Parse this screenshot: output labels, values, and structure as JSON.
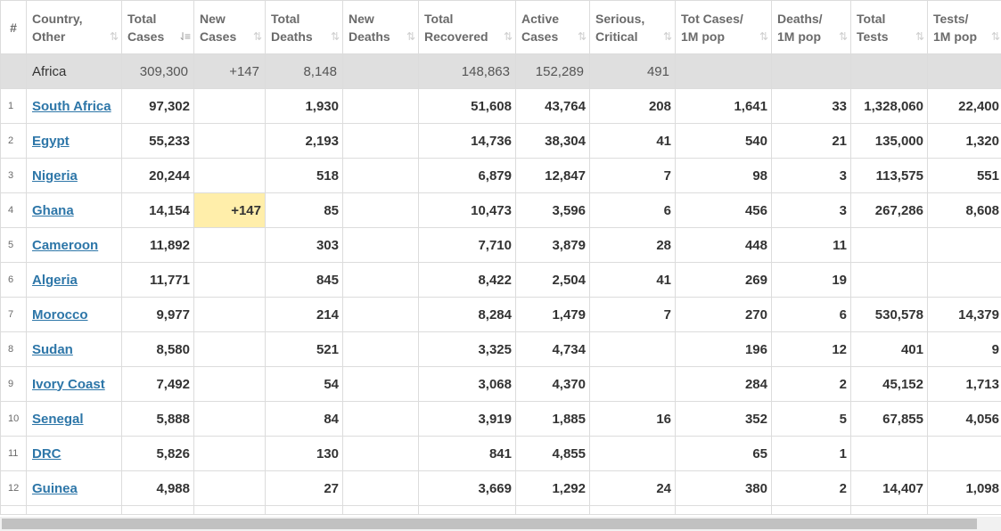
{
  "header": {
    "rank": "#",
    "columns": [
      {
        "l1": "Country,",
        "l2": "Other"
      },
      {
        "l1": "Total",
        "l2": "Cases"
      },
      {
        "l1": "New",
        "l2": "Cases"
      },
      {
        "l1": "Total",
        "l2": "Deaths"
      },
      {
        "l1": "New",
        "l2": "Deaths"
      },
      {
        "l1": "Total",
        "l2": "Recovered"
      },
      {
        "l1": "Active",
        "l2": "Cases"
      },
      {
        "l1": "Serious,",
        "l2": "Critical"
      },
      {
        "l1": "Tot Cases/",
        "l2": "1M pop"
      },
      {
        "l1": "Deaths/",
        "l2": "1M pop"
      },
      {
        "l1": "Total",
        "l2": "Tests"
      },
      {
        "l1": "Tests/",
        "l2": "1M pop"
      }
    ],
    "sort_icon": "⇅",
    "active_sort_icon": "⇃≡"
  },
  "continent": {
    "name": "Africa",
    "total_cases": "309,300",
    "new_cases": "+147",
    "total_deaths": "8,148",
    "new_deaths": "",
    "total_recovered": "148,863",
    "active_cases": "152,289",
    "serious": "491",
    "cases_per_m": "",
    "deaths_per_m": "",
    "total_tests": "",
    "tests_per_m": ""
  },
  "rows": [
    {
      "rank": "1",
      "country": "South Africa",
      "total_cases": "97,302",
      "new_cases": "",
      "total_deaths": "1,930",
      "new_deaths": "",
      "total_recovered": "51,608",
      "active_cases": "43,764",
      "serious": "208",
      "cases_per_m": "1,641",
      "deaths_per_m": "33",
      "total_tests": "1,328,060",
      "tests_per_m": "22,400"
    },
    {
      "rank": "2",
      "country": "Egypt",
      "total_cases": "55,233",
      "new_cases": "",
      "total_deaths": "2,193",
      "new_deaths": "",
      "total_recovered": "14,736",
      "active_cases": "38,304",
      "serious": "41",
      "cases_per_m": "540",
      "deaths_per_m": "21",
      "total_tests": "135,000",
      "tests_per_m": "1,320"
    },
    {
      "rank": "3",
      "country": "Nigeria",
      "total_cases": "20,244",
      "new_cases": "",
      "total_deaths": "518",
      "new_deaths": "",
      "total_recovered": "6,879",
      "active_cases": "12,847",
      "serious": "7",
      "cases_per_m": "98",
      "deaths_per_m": "3",
      "total_tests": "113,575",
      "tests_per_m": "551"
    },
    {
      "rank": "4",
      "country": "Ghana",
      "total_cases": "14,154",
      "new_cases": "+147",
      "total_deaths": "85",
      "new_deaths": "",
      "total_recovered": "10,473",
      "active_cases": "3,596",
      "serious": "6",
      "cases_per_m": "456",
      "deaths_per_m": "3",
      "total_tests": "267,286",
      "tests_per_m": "8,608"
    },
    {
      "rank": "5",
      "country": "Cameroon",
      "total_cases": "11,892",
      "new_cases": "",
      "total_deaths": "303",
      "new_deaths": "",
      "total_recovered": "7,710",
      "active_cases": "3,879",
      "serious": "28",
      "cases_per_m": "448",
      "deaths_per_m": "11",
      "total_tests": "",
      "tests_per_m": ""
    },
    {
      "rank": "6",
      "country": "Algeria",
      "total_cases": "11,771",
      "new_cases": "",
      "total_deaths": "845",
      "new_deaths": "",
      "total_recovered": "8,422",
      "active_cases": "2,504",
      "serious": "41",
      "cases_per_m": "269",
      "deaths_per_m": "19",
      "total_tests": "",
      "tests_per_m": ""
    },
    {
      "rank": "7",
      "country": "Morocco",
      "total_cases": "9,977",
      "new_cases": "",
      "total_deaths": "214",
      "new_deaths": "",
      "total_recovered": "8,284",
      "active_cases": "1,479",
      "serious": "7",
      "cases_per_m": "270",
      "deaths_per_m": "6",
      "total_tests": "530,578",
      "tests_per_m": "14,379"
    },
    {
      "rank": "8",
      "country": "Sudan",
      "total_cases": "8,580",
      "new_cases": "",
      "total_deaths": "521",
      "new_deaths": "",
      "total_recovered": "3,325",
      "active_cases": "4,734",
      "serious": "",
      "cases_per_m": "196",
      "deaths_per_m": "12",
      "total_tests": "401",
      "tests_per_m": "9"
    },
    {
      "rank": "9",
      "country": "Ivory Coast",
      "total_cases": "7,492",
      "new_cases": "",
      "total_deaths": "54",
      "new_deaths": "",
      "total_recovered": "3,068",
      "active_cases": "4,370",
      "serious": "",
      "cases_per_m": "284",
      "deaths_per_m": "2",
      "total_tests": "45,152",
      "tests_per_m": "1,713"
    },
    {
      "rank": "10",
      "country": "Senegal",
      "total_cases": "5,888",
      "new_cases": "",
      "total_deaths": "84",
      "new_deaths": "",
      "total_recovered": "3,919",
      "active_cases": "1,885",
      "serious": "16",
      "cases_per_m": "352",
      "deaths_per_m": "5",
      "total_tests": "67,855",
      "tests_per_m": "4,056"
    },
    {
      "rank": "11",
      "country": "DRC",
      "total_cases": "5,826",
      "new_cases": "",
      "total_deaths": "130",
      "new_deaths": "",
      "total_recovered": "841",
      "active_cases": "4,855",
      "serious": "",
      "cases_per_m": "65",
      "deaths_per_m": "1",
      "total_tests": "",
      "tests_per_m": ""
    },
    {
      "rank": "12",
      "country": "Guinea",
      "total_cases": "4,988",
      "new_cases": "",
      "total_deaths": "27",
      "new_deaths": "",
      "total_recovered": "3,669",
      "active_cases": "1,292",
      "serious": "24",
      "cases_per_m": "380",
      "deaths_per_m": "2",
      "total_tests": "14,407",
      "tests_per_m": "1,098"
    }
  ],
  "colors": {
    "link": "#2d76a8",
    "continent_row_bg": "#dfdfdf",
    "new_cases_highlight": "#ffeeaa",
    "border": "#dcdcdc"
  }
}
